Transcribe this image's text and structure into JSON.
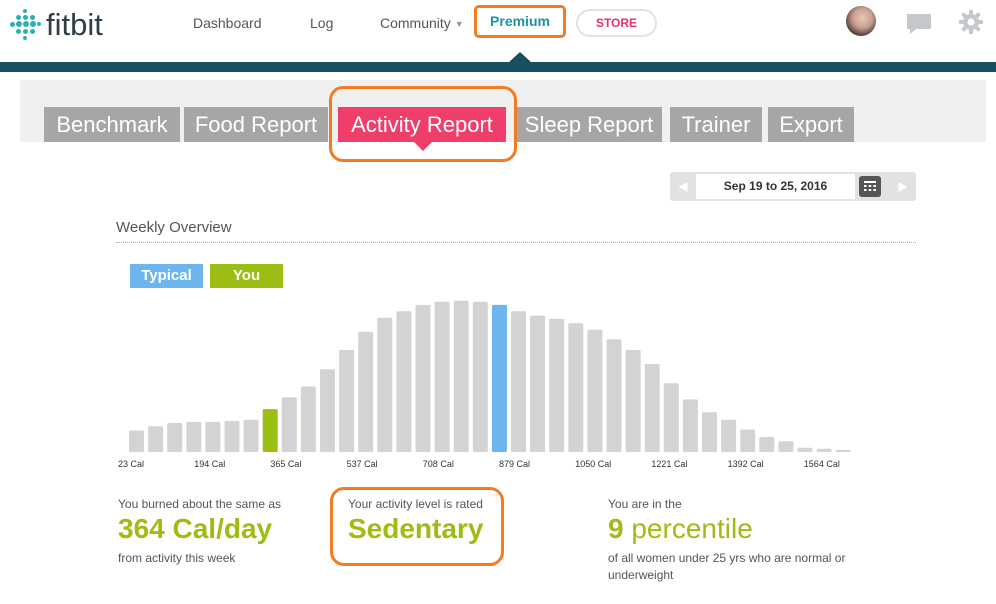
{
  "header": {
    "logo_text": "fitbit",
    "nav": [
      "Dashboard",
      "Log",
      "Community"
    ],
    "premium_label": "Premium",
    "store_label": "STORE"
  },
  "tabs": [
    {
      "label": "Benchmark",
      "active": false
    },
    {
      "label": "Food Report",
      "active": false
    },
    {
      "label": "Activity Report",
      "active": true
    },
    {
      "label": "Sleep Report",
      "active": false
    },
    {
      "label": "Trainer",
      "active": false
    },
    {
      "label": "Export",
      "active": false
    }
  ],
  "date_range": "Sep 19 to 25, 2016",
  "overview_title": "Weekly Overview",
  "legend": {
    "typical": "Typical",
    "you": "You"
  },
  "colors": {
    "accent": "#2ab0b9",
    "nav_bar": "#174e62",
    "tab_active": "#ef3e6a",
    "tab_inactive": "#a6a6a6",
    "typical": "#6cb5ef",
    "you": "#9cbd11",
    "bar": "#d3d3d3",
    "highlight_outline": "#f47b20"
  },
  "chart_data": {
    "type": "bar",
    "xlabel": "",
    "ylabel": "",
    "tick_labels": [
      "23 Cal",
      "194 Cal",
      "365 Cal",
      "537 Cal",
      "708 Cal",
      "879 Cal",
      "1050 Cal",
      "1221 Cal",
      "1392 Cal",
      "1564 Cal"
    ],
    "values": [
      20,
      24,
      27,
      28,
      28,
      29,
      30,
      40,
      51,
      61,
      77,
      95,
      112,
      125,
      131,
      137,
      140,
      141,
      140,
      137,
      131,
      127,
      124,
      120,
      114,
      105,
      95,
      82,
      64,
      49,
      37,
      30,
      21,
      14,
      10,
      4,
      3,
      2
    ],
    "you_index": 7,
    "typical_index": 19,
    "ylim": [
      0,
      150
    ]
  },
  "stats": {
    "burned_prefix": "You burned about the same as",
    "burned_value": "364 Cal/day",
    "burned_suffix": "from activity this week",
    "level_prefix": "Your activity level is rated",
    "level_value": "Sedentary",
    "percentile_prefix": "You are in the",
    "percentile_number": "9",
    "percentile_word": "percentile",
    "percentile_suffix_line1": "of all women under 25 yrs who are normal or",
    "percentile_suffix_line2": "underweight"
  }
}
